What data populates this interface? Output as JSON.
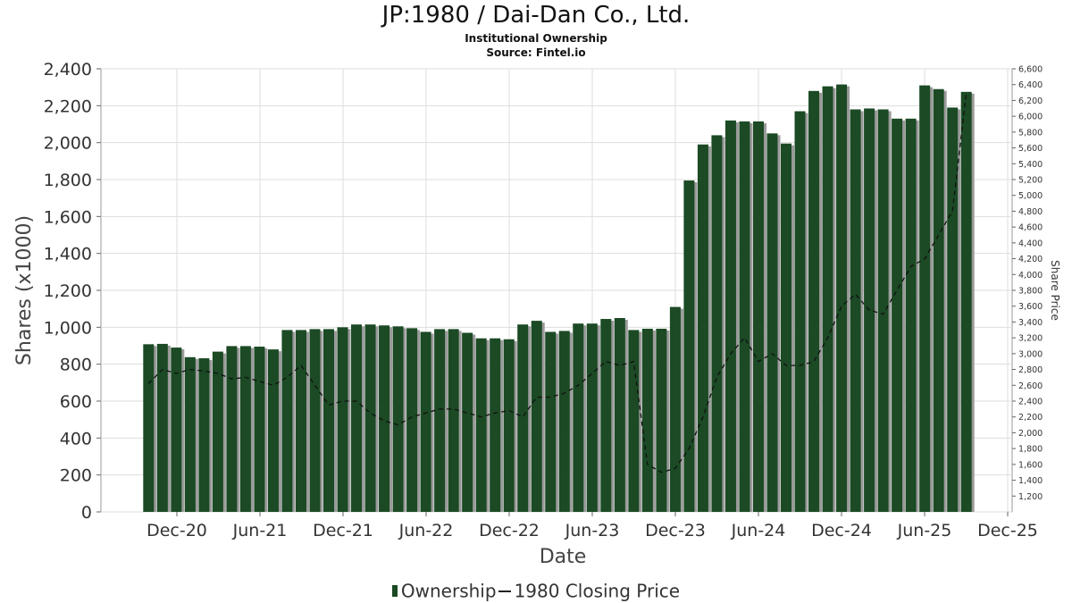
{
  "header": {
    "title": "JP:1980 / Dai-Dan Co., Ltd.",
    "subtitle": "Institutional Ownership",
    "source": "Source: Fintel.io"
  },
  "legend": {
    "ownership": "Ownership",
    "price": "1980 Closing Price"
  },
  "colors": {
    "bar": "#1b4a24",
    "bar_shadow": "#9a9a9a",
    "line": "#111111",
    "grid": "#dddddd"
  },
  "chart_data": {
    "type": "bar",
    "title": "JP:1980 / Dai-Dan Co., Ltd.",
    "xlabel": "Date",
    "ylabel": "Shares (x1000)",
    "y2label": "Share Price",
    "ylim": [
      0,
      2400
    ],
    "y2lim": [
      1000,
      6600
    ],
    "yticks": [
      "0",
      "200",
      "400",
      "600",
      "800",
      "1,000",
      "1,200",
      "1,400",
      "1,600",
      "1,800",
      "2,000",
      "2,200",
      "2,400"
    ],
    "y2ticks": [
      "1,200",
      "1,400",
      "1,600",
      "1,800",
      "2,000",
      "2,200",
      "2,400",
      "2,600",
      "2,800",
      "3,000",
      "3,200",
      "3,400",
      "3,600",
      "3,800",
      "4,000",
      "4,200",
      "4,400",
      "4,600",
      "4,800",
      "5,000",
      "5,200",
      "5,400",
      "5,600",
      "5,800",
      "6,000",
      "6,200",
      "6,400",
      "6,600"
    ],
    "xticks": [
      "Dec-20",
      "Jun-21",
      "Dec-21",
      "Jun-22",
      "Dec-22",
      "Jun-23",
      "Dec-23",
      "Jun-24",
      "Dec-24",
      "Jun-25",
      "Dec-25"
    ],
    "grid": true,
    "legend_position": "bottom",
    "series": [
      {
        "name": "Ownership",
        "type": "bar",
        "values": [
          908,
          910,
          890,
          838,
          832,
          868,
          898,
          898,
          895,
          880,
          985,
          985,
          990,
          990,
          1000,
          1015,
          1015,
          1010,
          1005,
          995,
          975,
          990,
          990,
          970,
          940,
          940,
          935,
          1015,
          1035,
          975,
          980,
          1020,
          1020,
          1045,
          1050,
          985,
          992,
          992,
          1110,
          1795,
          1990,
          2040,
          2120,
          2115,
          2115,
          2050,
          1995,
          2170,
          2280,
          2305,
          2315,
          2180,
          2185,
          2180,
          2130,
          2130,
          2310,
          2290,
          2190,
          2275
        ]
      },
      {
        "name": "1980 Closing Price",
        "type": "line",
        "values": [
          2620,
          2800,
          2750,
          2800,
          2780,
          2750,
          2680,
          2700,
          2650,
          2600,
          2700,
          2850,
          2600,
          2350,
          2400,
          2400,
          2250,
          2150,
          2100,
          2200,
          2250,
          2300,
          2300,
          2250,
          2200,
          2250,
          2280,
          2200,
          2450,
          2450,
          2500,
          2600,
          2750,
          2900,
          2850,
          2900,
          1600,
          1500,
          1550,
          1800,
          2200,
          2700,
          3000,
          3200,
          2900,
          3000,
          2850,
          2850,
          2900,
          3200,
          3600,
          3750,
          3550,
          3500,
          3800,
          4100,
          4200,
          4500,
          4800,
          6300
        ]
      }
    ]
  }
}
